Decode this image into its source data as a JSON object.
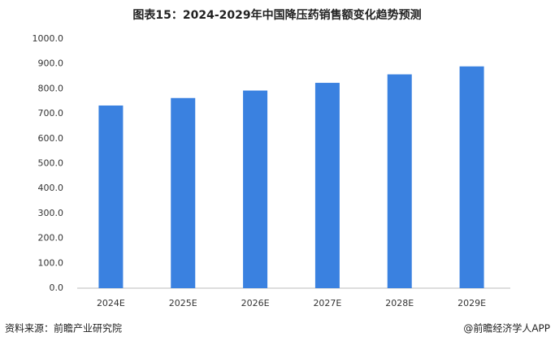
{
  "chart_data": {
    "type": "bar",
    "title": "图表15：2024-2029年中国降压药销售额变化趋势预测",
    "categories": [
      "2024E",
      "2025E",
      "2026E",
      "2027E",
      "2028E",
      "2029E"
    ],
    "values": [
      733,
      763,
      793,
      824,
      858,
      890
    ],
    "color": "#3a81e0",
    "ylim": [
      0,
      1000
    ],
    "yticks": [
      {
        "value": 0,
        "label": "0.0"
      },
      {
        "value": 100,
        "label": "100.0"
      },
      {
        "value": 200,
        "label": "200.0"
      },
      {
        "value": 300,
        "label": "300.0"
      },
      {
        "value": 400,
        "label": "400.0"
      },
      {
        "value": 500,
        "label": "500.0"
      },
      {
        "value": 600,
        "label": "600.0"
      },
      {
        "value": 700,
        "label": "700.0"
      },
      {
        "value": 800,
        "label": "800.0"
      },
      {
        "value": 900,
        "label": "900.0"
      },
      {
        "value": 1000,
        "label": "1000.0"
      }
    ],
    "grid": false,
    "source": "资料来源：前瞻产业研究院",
    "credit": "@前瞻经济学人APP"
  }
}
